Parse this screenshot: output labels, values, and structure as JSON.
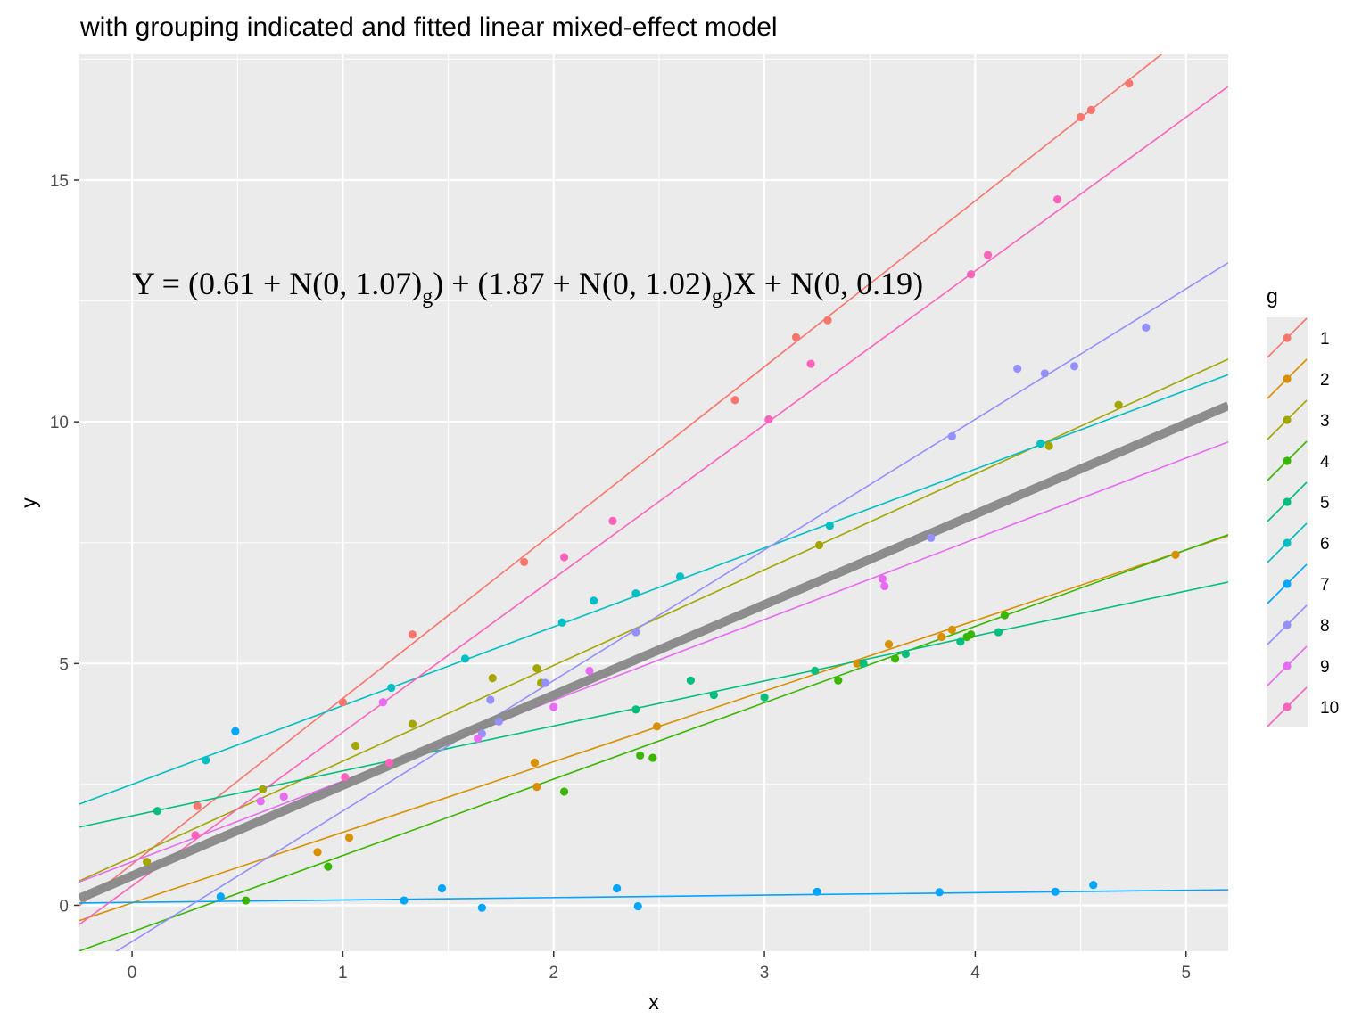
{
  "chart_data": {
    "type": "scatter",
    "title": "with grouping indicated and fitted linear mixed-effect model",
    "xlabel": "x",
    "ylabel": "y",
    "xlim": [
      -0.25,
      5.2
    ],
    "ylim": [
      -0.95,
      17.6
    ],
    "x_ticks": [
      0,
      1,
      2,
      3,
      4,
      5
    ],
    "y_ticks": [
      0,
      5,
      10,
      15
    ],
    "x_tick_labels": [
      "0",
      "1",
      "2",
      "3",
      "4",
      "5"
    ],
    "y_tick_labels": [
      "0",
      "5",
      "10",
      "15"
    ],
    "grid": true,
    "legend": {
      "title": "g",
      "placement": "right"
    },
    "equation": "Y = (0.61 + N(0, 1.07)g) + (1.87 + N(0, 1.02)g)X + N(0, 0.19)",
    "overall_fit": {
      "intercept": 0.61,
      "slope": 1.87,
      "color": "#888888"
    },
    "series": [
      {
        "name": "1",
        "color": "#F8766D",
        "intercept": 0.85,
        "slope": 3.43,
        "points": [
          [
            0.31,
            2.05
          ],
          [
            1.0,
            4.2
          ],
          [
            1.33,
            5.6
          ],
          [
            1.86,
            7.1
          ],
          [
            2.86,
            10.45
          ],
          [
            3.15,
            11.75
          ],
          [
            3.3,
            12.1
          ],
          [
            4.5,
            16.3
          ],
          [
            4.55,
            16.45
          ],
          [
            4.73,
            17.0
          ]
        ]
      },
      {
        "name": "2",
        "color": "#D89000",
        "intercept": 0.05,
        "slope": 1.46,
        "points": [
          [
            0.88,
            1.1
          ],
          [
            1.03,
            1.4
          ],
          [
            1.91,
            2.95
          ],
          [
            1.92,
            2.45
          ],
          [
            2.49,
            3.7
          ],
          [
            3.44,
            5.0
          ],
          [
            3.59,
            5.4
          ],
          [
            3.84,
            5.55
          ],
          [
            3.89,
            5.7
          ],
          [
            4.95,
            7.25
          ]
        ]
      },
      {
        "name": "3",
        "color": "#A3A500",
        "intercept": 1.0,
        "slope": 1.98,
        "points": [
          [
            0.07,
            0.9
          ],
          [
            0.62,
            2.4
          ],
          [
            1.06,
            3.3
          ],
          [
            1.33,
            3.75
          ],
          [
            1.71,
            4.7
          ],
          [
            1.92,
            4.9
          ],
          [
            1.94,
            4.6
          ],
          [
            3.26,
            7.45
          ],
          [
            4.35,
            9.5
          ],
          [
            4.68,
            10.35
          ]
        ]
      },
      {
        "name": "4",
        "color": "#39B600",
        "intercept": -0.55,
        "slope": 1.58,
        "points": [
          [
            0.54,
            0.1
          ],
          [
            0.93,
            0.8
          ],
          [
            2.05,
            2.35
          ],
          [
            2.41,
            3.1
          ],
          [
            2.47,
            3.05
          ],
          [
            3.35,
            4.65
          ],
          [
            3.62,
            5.1
          ],
          [
            3.96,
            5.55
          ],
          [
            3.98,
            5.6
          ],
          [
            4.14,
            6.0
          ]
        ]
      },
      {
        "name": "5",
        "color": "#00BF7D",
        "intercept": 1.85,
        "slope": 0.93,
        "points": [
          [
            0.12,
            1.95
          ],
          [
            2.39,
            4.05
          ],
          [
            2.65,
            4.65
          ],
          [
            2.76,
            4.35
          ],
          [
            3.0,
            4.3
          ],
          [
            3.24,
            4.85
          ],
          [
            3.47,
            5.0
          ],
          [
            3.67,
            5.2
          ],
          [
            3.93,
            5.45
          ],
          [
            4.11,
            5.65
          ]
        ]
      },
      {
        "name": "6",
        "color": "#00BFC4",
        "intercept": 2.5,
        "slope": 1.63,
        "points": [
          [
            0.35,
            3.0
          ],
          [
            1.23,
            4.5
          ],
          [
            1.58,
            5.1
          ],
          [
            2.04,
            5.85
          ],
          [
            2.19,
            6.3
          ],
          [
            2.39,
            6.45
          ],
          [
            2.6,
            6.8
          ],
          [
            3.31,
            7.85
          ],
          [
            4.31,
            9.55
          ]
        ]
      },
      {
        "name": "7",
        "color": "#00A5FF",
        "intercept": 0.06,
        "slope": 0.05,
        "points": [
          [
            0.49,
            3.6
          ],
          [
            0.42,
            0.18
          ],
          [
            1.29,
            0.1
          ],
          [
            1.47,
            0.35
          ],
          [
            1.66,
            -0.05
          ],
          [
            2.3,
            0.35
          ],
          [
            2.4,
            -0.02
          ],
          [
            3.25,
            0.28
          ],
          [
            3.83,
            0.27
          ],
          [
            4.38,
            0.28
          ],
          [
            4.56,
            0.42
          ]
        ]
      },
      {
        "name": "8",
        "color": "#9590FF",
        "intercept": -0.75,
        "slope": 2.7,
        "points": [
          [
            1.66,
            3.55
          ],
          [
            1.7,
            4.25
          ],
          [
            1.74,
            3.8
          ],
          [
            1.96,
            4.6
          ],
          [
            2.39,
            5.65
          ],
          [
            3.79,
            7.6
          ],
          [
            3.89,
            9.7
          ],
          [
            4.2,
            11.1
          ],
          [
            4.33,
            11.0
          ],
          [
            4.47,
            11.15
          ],
          [
            4.81,
            11.95
          ]
        ]
      },
      {
        "name": "9",
        "color": "#E76BF3",
        "intercept": 0.9,
        "slope": 1.67,
        "points": [
          [
            0.61,
            2.15
          ],
          [
            0.72,
            2.25
          ],
          [
            1.19,
            4.2
          ],
          [
            1.64,
            3.45
          ],
          [
            2.0,
            4.1
          ],
          [
            2.17,
            4.85
          ],
          [
            3.56,
            6.75
          ],
          [
            3.57,
            6.6
          ]
        ]
      },
      {
        "name": "10",
        "color": "#FF62BC",
        "intercept": 0.4,
        "slope": 3.18,
        "points": [
          [
            0.3,
            1.45
          ],
          [
            1.01,
            2.65
          ],
          [
            1.22,
            2.95
          ],
          [
            2.05,
            7.2
          ],
          [
            2.28,
            7.95
          ],
          [
            3.02,
            10.05
          ],
          [
            3.22,
            11.2
          ],
          [
            4.06,
            13.45
          ],
          [
            4.39,
            14.6
          ],
          [
            3.98,
            13.05
          ]
        ]
      }
    ]
  }
}
